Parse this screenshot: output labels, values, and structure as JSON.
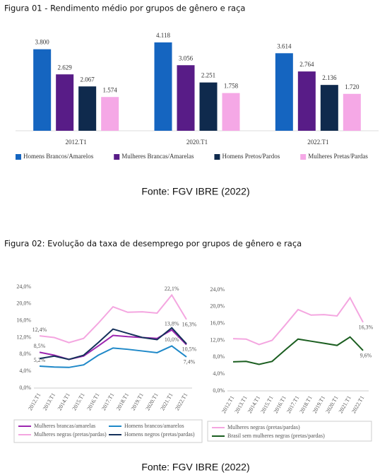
{
  "chart_data": [
    {
      "type": "bar",
      "title": "Figura 01 - Rendimento médio por grupos de gênero e raça",
      "source": "Fonte: FGV IBRE (2022)",
      "categories": [
        "2012.T1",
        "2020.T1",
        "2022.T1"
      ],
      "series": [
        {
          "name": "Homens Brancos/Amarelos",
          "color": "#1565c0",
          "values": [
            3800,
            4118,
            3614
          ],
          "value_labels": [
            "3.800",
            "4.118",
            "3.614"
          ]
        },
        {
          "name": "Mulheres Brancas/Amarelas",
          "color": "#581c87",
          "values": [
            2629,
            3056,
            2764
          ],
          "value_labels": [
            "2.629",
            "3.056",
            "2.764"
          ]
        },
        {
          "name": "Homens Pretos/Pardos",
          "color": "#0f2a4d",
          "values": [
            2067,
            2251,
            2136
          ],
          "value_labels": [
            "2.067",
            "2.251",
            "2.136"
          ]
        },
        {
          "name": "Mulheres Pretas/Pardas",
          "color": "#f5a8e6",
          "values": [
            1574,
            1758,
            1720
          ],
          "value_labels": [
            "1.574",
            "1.758",
            "1.720"
          ]
        }
      ],
      "legend": "bottom"
    },
    {
      "type": "line",
      "title": "Figura 02: Evolução da taxa de desemprego por grupos de gênero e raça",
      "source": "Fonte: FGV IBRE (2022)",
      "categories": [
        "2012.T1",
        "2013.T1",
        "2014.T1",
        "2015.T1",
        "2016.T1",
        "2017.T1",
        "2018.T1",
        "2019.T1",
        "2020.T1",
        "2021.T1",
        "2022.T1"
      ],
      "ylim": [
        0,
        24
      ],
      "yticks": [
        {
          "value": 0,
          "label": "0,0%"
        },
        {
          "value": 4,
          "label": "4,0%"
        },
        {
          "value": 8,
          "label": "8,0%"
        },
        {
          "value": 12,
          "label": "12,0%"
        },
        {
          "value": 16,
          "label": "16,0%"
        },
        {
          "value": 20,
          "label": "20,0%"
        },
        {
          "value": 24,
          "label": "24,0%"
        }
      ],
      "series": [
        {
          "name": "Mulheres brancas/amarelas",
          "color": "#9c27b0",
          "values": [
            8.5,
            7.8,
            6.8,
            7.6,
            10.0,
            12.5,
            12.2,
            12.0,
            11.8,
            13.8,
            10.3
          ],
          "value_labels": [
            "8,5%",
            null,
            null,
            null,
            null,
            null,
            null,
            null,
            null,
            "13,8%",
            null
          ]
        },
        {
          "name": "Homens brancos/amarelos",
          "color": "#1e88c8",
          "values": [
            5.2,
            5.0,
            4.9,
            5.5,
            7.8,
            9.5,
            9.2,
            8.8,
            8.4,
            10.0,
            7.4
          ],
          "value_labels": [
            "5,2%",
            null,
            null,
            null,
            null,
            null,
            null,
            null,
            null,
            "10,0%",
            "7,4%"
          ]
        },
        {
          "name": "Mulheres negras (pretas/pardas)",
          "color": "#f4a6e0",
          "values": [
            12.4,
            12.0,
            10.8,
            11.8,
            15.4,
            19.3,
            18.0,
            18.1,
            17.8,
            22.1,
            16.3
          ],
          "value_labels": [
            "12,4%",
            null,
            null,
            null,
            null,
            null,
            null,
            null,
            null,
            "22,1%",
            "16,3%"
          ]
        },
        {
          "name": "Homens negros (pretas/pardas)",
          "color": "#14305a",
          "values": [
            7.0,
            7.6,
            6.8,
            7.8,
            10.8,
            14.0,
            13.0,
            12.0,
            11.5,
            14.3,
            10.5
          ],
          "value_labels": [
            null,
            null,
            null,
            null,
            null,
            null,
            null,
            null,
            null,
            null,
            "10,5%"
          ]
        }
      ],
      "legend": "bottom"
    },
    {
      "type": "line",
      "categories": [
        "2012.T1",
        "2013.T1",
        "2014.T1",
        "2015.T1",
        "2016.T1",
        "2017.T1",
        "2018.T1",
        "2019.T1",
        "2020.T1",
        "2021.T1",
        "2022.T1"
      ],
      "ylim": [
        0,
        24
      ],
      "yticks": [
        {
          "value": 0,
          "label": "0,0%"
        },
        {
          "value": 4,
          "label": "4,0%"
        },
        {
          "value": 8,
          "label": "8,0%"
        },
        {
          "value": 12,
          "label": "12,0%"
        },
        {
          "value": 16,
          "label": "16,0%"
        },
        {
          "value": 20,
          "label": "20,0%"
        },
        {
          "value": 24,
          "label": "24,0%"
        }
      ],
      "series": [
        {
          "name": "Mulheres negras (pretas/pardas)",
          "color": "#f4a6e0",
          "values": [
            12.4,
            12.3,
            11.0,
            12.0,
            15.6,
            19.3,
            18.0,
            18.1,
            17.8,
            22.1,
            16.3
          ],
          "value_labels": [
            null,
            null,
            null,
            null,
            null,
            null,
            null,
            null,
            null,
            null,
            "16,3%"
          ]
        },
        {
          "name": "Brasil sem mulheres negras (pretas/pardas)",
          "color": "#1b5e20",
          "values": [
            6.9,
            7.0,
            6.3,
            7.0,
            9.7,
            12.3,
            11.8,
            11.3,
            10.8,
            12.8,
            9.6
          ],
          "value_labels": [
            null,
            null,
            null,
            null,
            null,
            null,
            null,
            null,
            null,
            null,
            "9,6%"
          ]
        }
      ],
      "legend": "bottom"
    }
  ]
}
